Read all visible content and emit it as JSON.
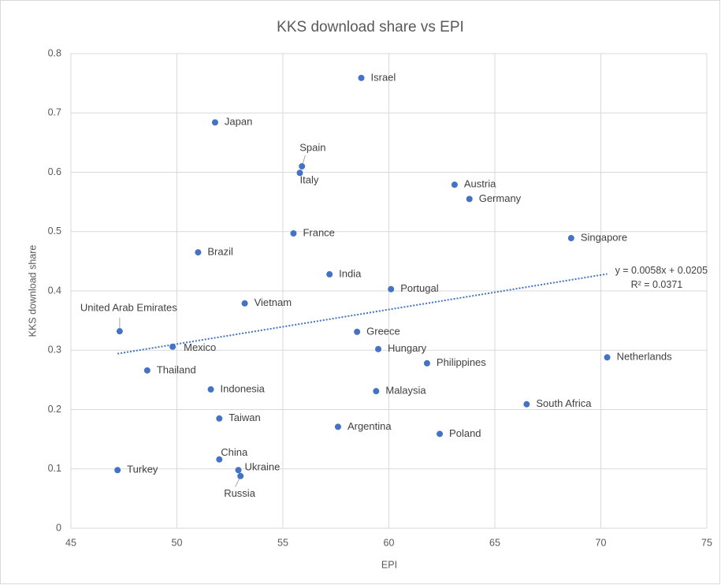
{
  "chart_data": {
    "type": "scatter",
    "title": "KKS download share vs EPI",
    "x_label": "EPI",
    "y_label": "KKS download share",
    "color": "#4472c4",
    "labels": [
      "Israel",
      "Japan",
      "Spain",
      "Italy",
      "Austria",
      "Germany",
      "France",
      "Singapore",
      "Brazil",
      "India",
      "Portugal",
      "Vietnam",
      "United Arab Emirates",
      "Greece",
      "Mexico",
      "Hungary",
      "Netherlands",
      "Philippines",
      "Thailand",
      "Indonesia",
      "Malaysia",
      "South Africa",
      "Taiwan",
      "Argentina",
      "Poland",
      "China",
      "Turkey",
      "Ukraine",
      "Russia"
    ],
    "x": [
      58.7,
      51.8,
      55.9,
      55.8,
      63.1,
      63.8,
      55.5,
      68.6,
      51.0,
      57.2,
      60.1,
      53.2,
      47.3,
      58.5,
      49.8,
      59.5,
      70.3,
      61.8,
      48.6,
      51.6,
      59.4,
      66.5,
      52.0,
      57.6,
      62.4,
      52.0,
      47.2,
      52.9,
      53.0
    ],
    "values": [
      0.759,
      0.684,
      0.61,
      0.599,
      0.579,
      0.555,
      0.497,
      0.489,
      0.465,
      0.428,
      0.403,
      0.379,
      0.332,
      0.331,
      0.306,
      0.302,
      0.288,
      0.278,
      0.266,
      0.234,
      0.231,
      0.209,
      0.185,
      0.171,
      0.159,
      0.116,
      0.098,
      0.098,
      0.088
    ],
    "xlim": [
      45,
      75
    ],
    "xticks": [
      45,
      50,
      55,
      60,
      65,
      70,
      75
    ],
    "ylim": [
      0,
      0.8
    ],
    "yticks": [
      0,
      0.1,
      0.2,
      0.3,
      0.4,
      0.5,
      0.6,
      0.7,
      0.8
    ],
    "grid": true,
    "trendline": {
      "equation": "y = 0.0058x + 0.0205",
      "r_squared": "R² = 0.0371"
    }
  }
}
